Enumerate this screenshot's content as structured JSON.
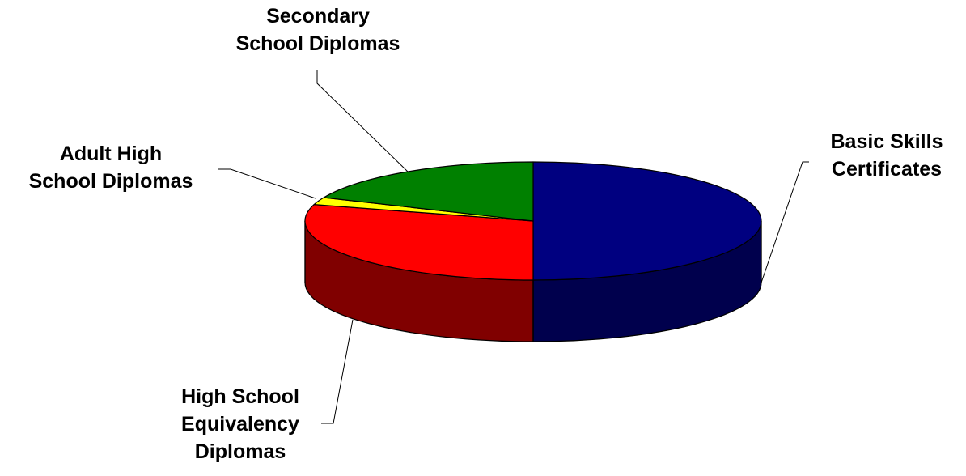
{
  "chart_data": {
    "type": "pie",
    "style": "3d",
    "title": "",
    "legend": "none",
    "categories": [
      "Basic Skills Certificates",
      "High School Equivalency Diplomas",
      "Adult High School Diplomas",
      "Secondary School Diplomas"
    ],
    "values": [
      50.0,
      29.5,
      2.0,
      18.5
    ],
    "unit": "percent (estimated from slice angles)",
    "labels": [
      {
        "lines": [
          "Basic Skills",
          "Certificates"
        ]
      },
      {
        "lines": [
          "High School",
          "Equivalency",
          "Diplomas"
        ]
      },
      {
        "lines": [
          "Adult High",
          "School Diplomas"
        ]
      },
      {
        "lines": [
          "Secondary",
          "School Diplomas"
        ]
      }
    ],
    "colors": {
      "top": [
        "#000080",
        "#FF0000",
        "#FFFF00",
        "#008000"
      ],
      "side": [
        "#00004D",
        "#800000",
        "#808000",
        "#004D00"
      ]
    }
  }
}
